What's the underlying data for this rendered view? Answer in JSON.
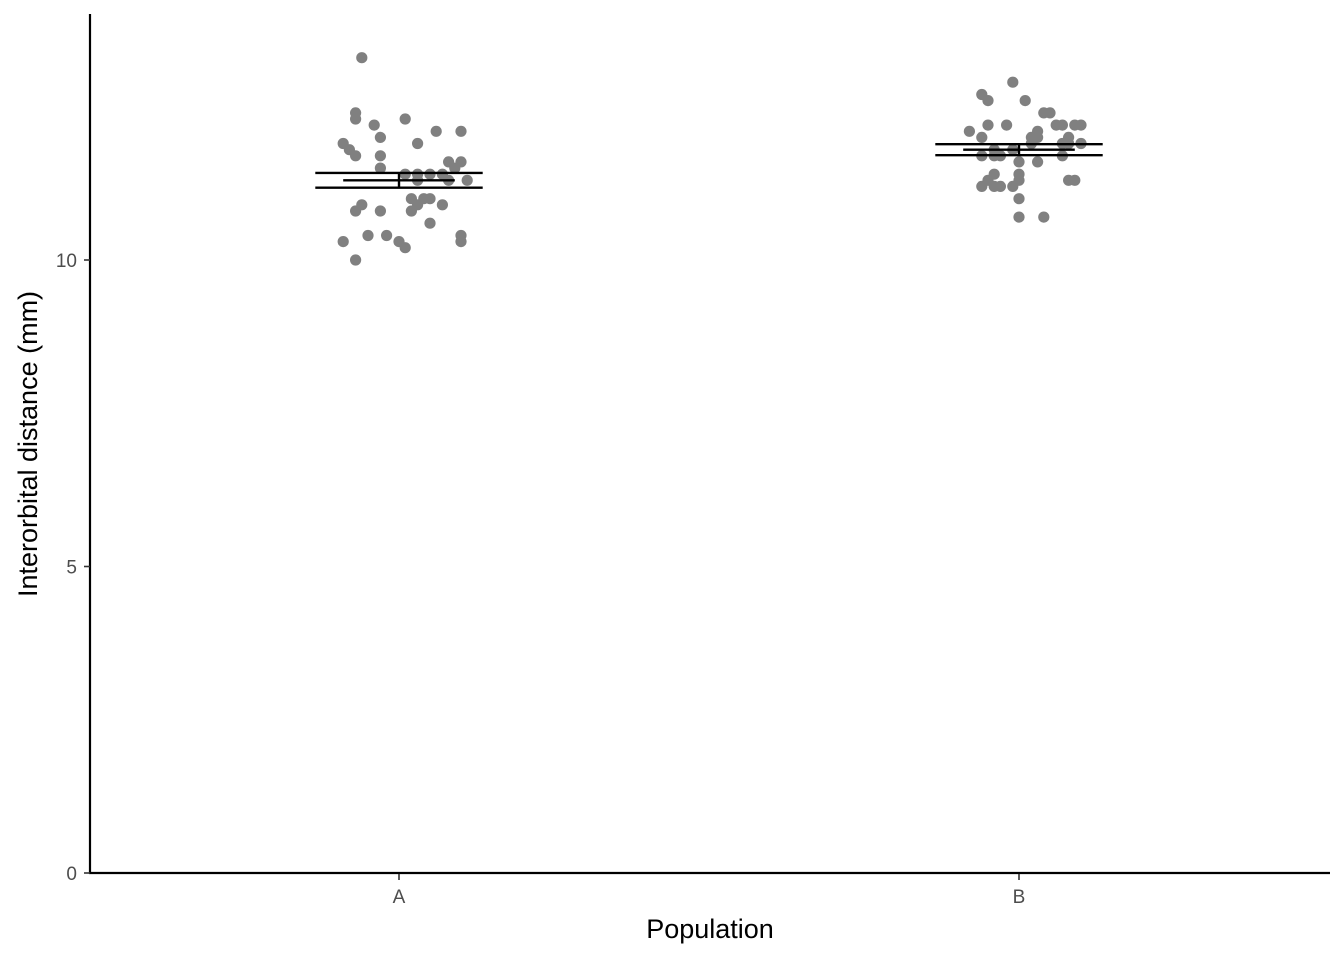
{
  "chart_data": {
    "type": "scatter",
    "subtype": "jitter strip with mean and standard-error bars",
    "xlabel": "Population",
    "ylabel": "Interorbital distance (mm)",
    "categories": [
      "A",
      "B"
    ],
    "ylim": [
      0,
      14
    ],
    "yticks": [
      0,
      5,
      10
    ],
    "grid": false,
    "legend": "none",
    "point_color": "#808080",
    "summary_color": "#000000",
    "series": [
      {
        "category": "A",
        "values": [
          13.3,
          12.4,
          12.3,
          12.3,
          12.2,
          12.1,
          12.1,
          12.0,
          11.9,
          11.9,
          11.8,
          11.7,
          11.7,
          11.6,
          11.6,
          11.5,
          11.5,
          11.4,
          11.4,
          11.4,
          11.4,
          11.3,
          11.3,
          11.3,
          11.0,
          11.0,
          11.0,
          10.9,
          10.9,
          10.9,
          10.8,
          10.8,
          10.8,
          10.6,
          10.4,
          10.4,
          10.4,
          10.3,
          10.3,
          10.3,
          10.2,
          10.0
        ],
        "x_offsets": [
          -0.06,
          -0.07,
          -0.07,
          0.01,
          -0.04,
          0.06,
          0.1,
          -0.03,
          0.03,
          -0.09,
          -0.08,
          -0.07,
          -0.03,
          0.1,
          0.08,
          -0.03,
          0.09,
          0.07,
          0.01,
          0.03,
          0.05,
          0.03,
          0.08,
          0.11,
          0.04,
          0.05,
          0.02,
          -0.06,
          0.03,
          0.07,
          -0.03,
          -0.07,
          0.02,
          0.05,
          -0.05,
          -0.02,
          0.1,
          -0.09,
          0.1,
          0.0,
          0.01,
          -0.07
        ],
        "mean": 11.3,
        "error": 0.12
      },
      {
        "category": "B",
        "values": [
          12.9,
          12.7,
          12.6,
          12.6,
          12.4,
          12.4,
          12.2,
          12.2,
          12.2,
          12.2,
          12.2,
          12.2,
          12.1,
          12.1,
          12.0,
          12.0,
          12.0,
          12.0,
          11.9,
          11.9,
          11.9,
          11.9,
          11.8,
          11.8,
          11.7,
          11.7,
          11.7,
          11.7,
          11.6,
          11.6,
          11.4,
          11.4,
          11.3,
          11.3,
          11.3,
          11.3,
          11.2,
          11.2,
          11.2,
          11.2,
          11.0,
          10.7,
          10.7
        ],
        "x_offsets": [
          -0.01,
          -0.06,
          -0.05,
          0.01,
          0.04,
          0.05,
          -0.05,
          -0.02,
          0.06,
          0.07,
          0.09,
          0.1,
          -0.08,
          0.03,
          -0.06,
          0.02,
          0.03,
          0.08,
          0.07,
          0.08,
          0.1,
          0.02,
          -0.04,
          -0.01,
          -0.06,
          -0.04,
          -0.03,
          0.07,
          0.0,
          0.03,
          -0.04,
          0.0,
          -0.05,
          0.0,
          0.08,
          0.09,
          -0.06,
          -0.04,
          -0.03,
          -0.01,
          0.0,
          0.0,
          0.04
        ],
        "mean": 11.8,
        "error": 0.09
      }
    ]
  }
}
